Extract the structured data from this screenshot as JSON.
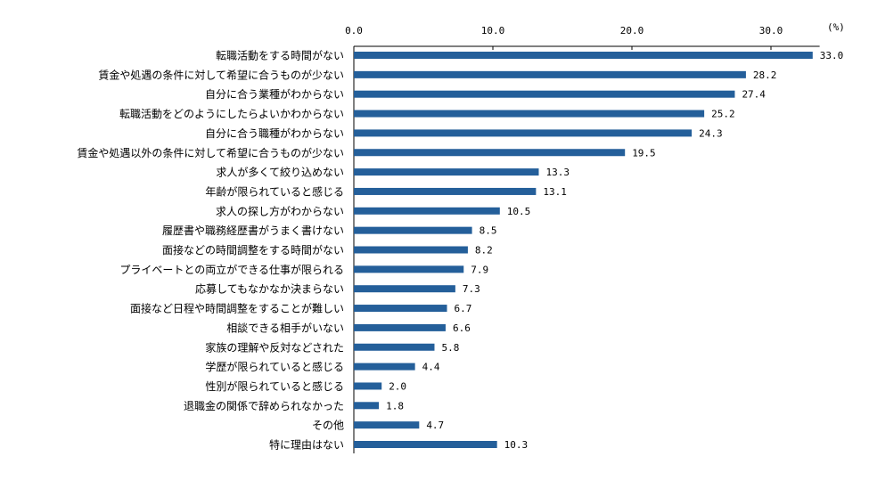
{
  "chart_data": {
    "type": "bar",
    "orientation": "horizontal",
    "unit_label": "(%)",
    "xlim": [
      0,
      33
    ],
    "xticks": [
      "0.0",
      "10.0",
      "20.0",
      "30.0"
    ],
    "xtick_values": [
      0,
      10,
      20,
      30
    ],
    "bar_color": "#245F9A",
    "categories": [
      "転職活動をする時間がない",
      "賃金や処遇の条件に対して希望に合うものが少ない",
      "自分に合う業種がわからない",
      "転職活動をどのようにしたらよいかわからない",
      "自分に合う職種がわからない",
      "賃金や処遇以外の条件に対して希望に合うものが少ない",
      "求人が多くて絞り込めない",
      "年齢が限られていると感じる",
      "求人の探し方がわからない",
      "履歴書や職務経歴書がうまく書けない",
      "面接などの時間調整をする時間がない",
      "プライベートとの両立ができる仕事が限られる",
      "応募してもなかなか決まらない",
      "面接など日程や時間調整をすることが難しい",
      "相談できる相手がいない",
      "家族の理解や反対などされた",
      "学歴が限られていると感じる",
      "性別が限られていると感じる",
      "退職金の関係で辞められなかった",
      "その他",
      "特に理由はない"
    ],
    "values": [
      33.0,
      28.2,
      27.4,
      25.2,
      24.3,
      19.5,
      13.3,
      13.1,
      10.5,
      8.5,
      8.2,
      7.9,
      7.3,
      6.7,
      6.6,
      5.8,
      4.4,
      2.0,
      1.8,
      4.7,
      10.3
    ],
    "value_labels": [
      "33.0",
      "28.2",
      "27.4",
      "25.2",
      "24.3",
      "19.5",
      "13.3",
      "13.1",
      "10.5",
      "8.5",
      "8.2",
      "7.9",
      "7.3",
      "6.7",
      "6.6",
      "5.8",
      "4.4",
      "2.0",
      "1.8",
      "4.7",
      "10.3"
    ]
  }
}
